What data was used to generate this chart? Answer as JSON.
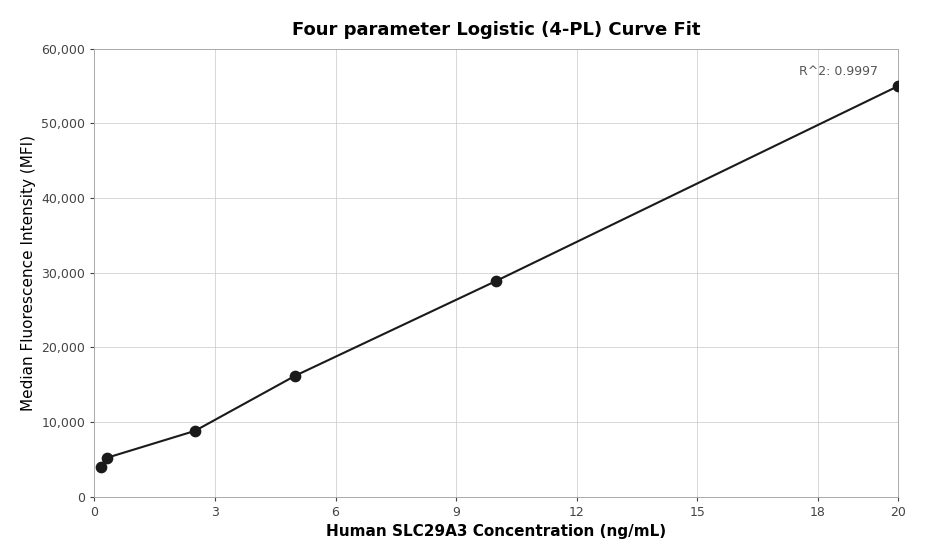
{
  "title": "Four parameter Logistic (4-PL) Curve Fit",
  "xlabel": "Human SLC29A3 Concentration (ng/mL)",
  "ylabel": "Median Fluorescence Intensity (MFI)",
  "data_points_x": [
    0.156,
    0.313,
    2.5,
    5.0,
    10.0,
    20.0
  ],
  "data_points_y": [
    4000,
    5200,
    8800,
    16200,
    28900,
    55000
  ],
  "r_squared": "R^2: 0.9997",
  "xlim": [
    0,
    20
  ],
  "ylim": [
    0,
    60000
  ],
  "xticks": [
    0,
    3,
    6,
    9,
    12,
    15,
    18,
    20
  ],
  "yticks": [
    0,
    10000,
    20000,
    30000,
    40000,
    50000,
    60000
  ],
  "line_color": "#1a1a1a",
  "point_color": "#1a1a1a",
  "background_color": "#ffffff",
  "grid_color": "#cccccc",
  "title_fontsize": 13,
  "label_fontsize": 11,
  "tick_labelsize": 9,
  "annotation_fontsize": 9
}
